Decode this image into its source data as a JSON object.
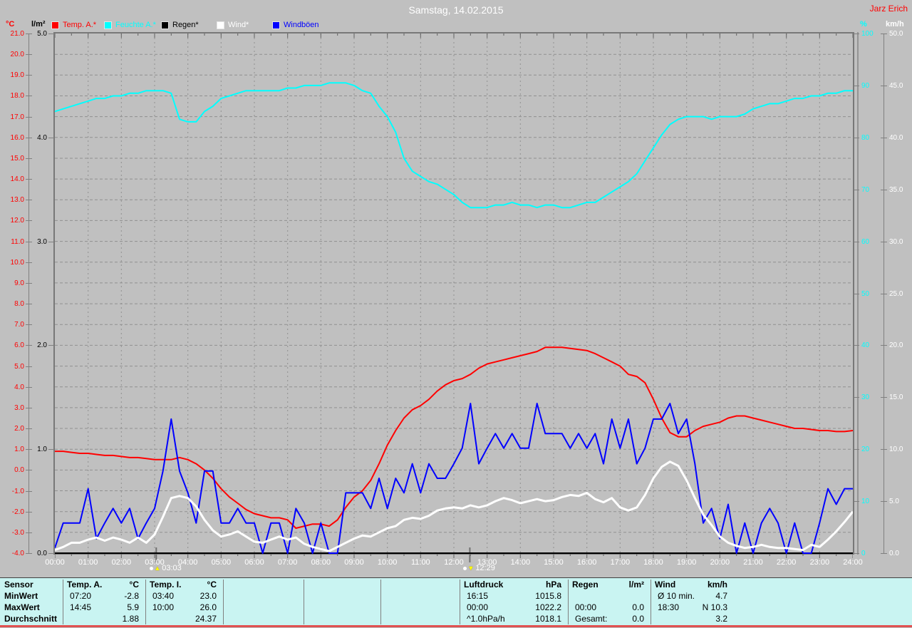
{
  "header": {
    "title": "Samstag, 14.02.2015",
    "user": "Jarz Erich"
  },
  "legend": {
    "items": [
      {
        "label": "Temp. A.*",
        "color": "#ff0000"
      },
      {
        "label": "Feuchte A.*",
        "color": "#00ffff"
      },
      {
        "label": "Regen*",
        "color": "#000000"
      },
      {
        "label": "Wind*",
        "color": "#ffffff"
      },
      {
        "label": "Windböen",
        "color": "#0000ff"
      }
    ]
  },
  "colors": {
    "background": "#c0c0c0",
    "title_text": "#ffffff",
    "user_text": "#ff0000",
    "grid": "#909090",
    "frame": "#787878",
    "tick": "#606060",
    "axis_line": "#808080",
    "x_label": "#ffffff",
    "marker_label": "#ffffff",
    "marker_icon": "#ffff00",
    "table_bg": "#c9f4f2",
    "table_separator": "#808080",
    "bottom_line": "#e05050"
  },
  "chart_data": {
    "type": "line",
    "title": "Samstag, 14.02.2015",
    "x_range_hours": [
      0,
      24
    ],
    "x_interval_minutes": 15,
    "x_ticks": [
      "00:00",
      "01:00",
      "02:00",
      "03:00",
      "04:00",
      "05:00",
      "06:00",
      "07:00",
      "08:00",
      "09:00",
      "10:00",
      "11:00",
      "12:00",
      "13:00",
      "14:00",
      "15:00",
      "16:00",
      "17:00",
      "18:00",
      "19:00",
      "20:00",
      "21:00",
      "22:00",
      "23:00",
      "24:00"
    ],
    "grid": true,
    "axes": {
      "temp": {
        "unit": "°C",
        "color": "#ff0000",
        "min": -4,
        "max": 21,
        "step": 1,
        "decimals": 1,
        "side": "left-outer"
      },
      "rain": {
        "unit": "l/m²",
        "color": "#000000",
        "min": 0,
        "max": 5,
        "step": 1,
        "decimals": 1,
        "side": "left-inner"
      },
      "humidity": {
        "unit": "%",
        "color": "#00ffff",
        "min": 0,
        "max": 100,
        "step": 10,
        "decimals": 0,
        "side": "right-inner"
      },
      "wind": {
        "unit": "km/h",
        "color": "#ffffff",
        "min": 0,
        "max": 50,
        "step": 5,
        "decimals": 1,
        "side": "right-outer"
      }
    },
    "series": [
      {
        "id": "rain",
        "name": "Regen*",
        "color": "#000000",
        "axis": "rain",
        "width": 2,
        "constant": 0.0
      },
      {
        "id": "humidity",
        "name": "Feuchte A.*",
        "color": "#00ffff",
        "axis": "humidity",
        "width": 2,
        "values": [
          85,
          85.5,
          86,
          86.5,
          87,
          87.5,
          87.5,
          88,
          88,
          88.5,
          88.5,
          89,
          89,
          89,
          88.5,
          83.5,
          83,
          83,
          85,
          86,
          87.5,
          88,
          88.5,
          89,
          89,
          89,
          89,
          89,
          89.5,
          89.5,
          90,
          90,
          90,
          90.5,
          90.5,
          90.5,
          90,
          89,
          88.5,
          86,
          84,
          81,
          76,
          73.5,
          72.5,
          71.5,
          71,
          70,
          69,
          67.5,
          66.5,
          66.5,
          66.5,
          67,
          67,
          67.5,
          67,
          67,
          66.5,
          67,
          67,
          66.5,
          66.5,
          67,
          67.5,
          67.5,
          68.5,
          69.5,
          70.5,
          71.5,
          73,
          75.5,
          78,
          80.5,
          82.5,
          83.5,
          84,
          84,
          84,
          83.5,
          84,
          84,
          84,
          84.5,
          85.5,
          86,
          86.5,
          86.5,
          87,
          87.5,
          87.5,
          88,
          88,
          88.5,
          88.5,
          89,
          89
        ]
      },
      {
        "id": "temp",
        "name": "Temp. A.*",
        "color": "#ff0000",
        "axis": "temp",
        "width": 2,
        "values": [
          0.9,
          0.9,
          0.85,
          0.8,
          0.8,
          0.75,
          0.7,
          0.7,
          0.65,
          0.6,
          0.6,
          0.55,
          0.5,
          0.5,
          0.5,
          0.6,
          0.5,
          0.3,
          0,
          -0.4,
          -0.9,
          -1.3,
          -1.6,
          -1.9,
          -2.1,
          -2.2,
          -2.3,
          -2.3,
          -2.4,
          -2.8,
          -2.7,
          -2.6,
          -2.6,
          -2.7,
          -2.4,
          -1.8,
          -1.3,
          -1,
          -0.5,
          0.3,
          1.2,
          1.9,
          2.5,
          2.9,
          3.1,
          3.4,
          3.8,
          4.1,
          4.3,
          4.4,
          4.6,
          4.9,
          5.1,
          5.2,
          5.3,
          5.4,
          5.5,
          5.6,
          5.7,
          5.9,
          5.9,
          5.9,
          5.85,
          5.8,
          5.75,
          5.6,
          5.4,
          5.2,
          5,
          4.6,
          4.5,
          4.2,
          3.4,
          2.5,
          1.8,
          1.6,
          1.6,
          1.9,
          2.1,
          2.2,
          2.3,
          2.5,
          2.6,
          2.6,
          2.5,
          2.4,
          2.3,
          2.2,
          2.1,
          2,
          2,
          1.95,
          1.9,
          1.9,
          1.85,
          1.85,
          1.9
        ]
      },
      {
        "id": "gusts",
        "name": "Windböen",
        "color": "#0000ff",
        "axis": "wind",
        "width": 2,
        "values": [
          0.5,
          2.9,
          2.9,
          2.9,
          6.2,
          1.4,
          2.9,
          4.3,
          2.9,
          4.3,
          1.4,
          2.9,
          4.3,
          7.9,
          12.9,
          7.9,
          5.8,
          2.9,
          7.9,
          7.9,
          2.9,
          2.9,
          4.3,
          2.9,
          2.9,
          0,
          2.9,
          2.9,
          0,
          4.3,
          2.9,
          0,
          2.9,
          0,
          0,
          5.8,
          5.8,
          5.8,
          4.3,
          7.2,
          4.3,
          7.2,
          5.8,
          8.6,
          5.8,
          8.6,
          7.2,
          7.2,
          8.6,
          10.1,
          14.4,
          8.6,
          10.1,
          11.5,
          10.1,
          11.5,
          10.1,
          10.1,
          14.4,
          11.5,
          11.5,
          11.5,
          10.1,
          11.5,
          10.1,
          11.5,
          8.6,
          12.9,
          10.1,
          12.9,
          8.6,
          10.1,
          12.9,
          12.9,
          14.4,
          11.5,
          12.9,
          8.6,
          2.9,
          4.3,
          1.4,
          4.7,
          0,
          2.9,
          0,
          2.9,
          4.3,
          2.9,
          0,
          2.9,
          0,
          0,
          2.9,
          6.2,
          4.7,
          6.2,
          6.2
        ]
      },
      {
        "id": "wind",
        "name": "Wind*",
        "color": "#ffffff",
        "axis": "wind",
        "width": 3,
        "values": [
          0.3,
          0.6,
          1,
          1,
          1.3,
          1.5,
          1.2,
          1.5,
          1.3,
          1,
          1.5,
          1,
          1.8,
          3.5,
          5.3,
          5.5,
          5.3,
          4.5,
          3.2,
          2.2,
          1.6,
          1.8,
          2.1,
          1.6,
          1.1,
          1,
          1.3,
          1.6,
          1.3,
          1.5,
          0.9,
          0.6,
          0.4,
          0.2,
          0.6,
          1,
          1.4,
          1.7,
          1.6,
          2,
          2.4,
          2.6,
          3.2,
          3.4,
          3.3,
          3.6,
          4.1,
          4.3,
          4.4,
          4.3,
          4.6,
          4.4,
          4.6,
          5,
          5.3,
          5.1,
          4.8,
          5,
          5.2,
          5,
          5.1,
          5.4,
          5.6,
          5.5,
          5.8,
          5.2,
          4.9,
          5.3,
          4.4,
          4.1,
          4.4,
          5.6,
          7.2,
          8.3,
          8.8,
          8.4,
          7,
          5.3,
          3.7,
          2.7,
          1.6,
          1,
          0.7,
          0.5,
          0.6,
          0.8,
          0.6,
          0.5,
          0.5,
          0.4,
          0.3,
          0.8,
          0.6,
          1.3,
          2.1,
          3,
          4
        ]
      }
    ],
    "markers": [
      {
        "label": "03:03",
        "hour": 3.05,
        "icon": "moonrise-icon",
        "direction": "up"
      },
      {
        "label": "12:29",
        "hour": 12.48,
        "icon": "moonset-icon",
        "direction": "down"
      }
    ]
  },
  "table": {
    "row_labels": [
      "Sensor",
      "MinWert",
      "MaxWert",
      "Durchschnitt"
    ],
    "columns": [
      {
        "name": "Temp. A.",
        "unit": "°C",
        "rows": [
          [
            "07:20",
            "-2.8"
          ],
          [
            "14:45",
            "5.9"
          ],
          [
            "",
            "1.88"
          ]
        ]
      },
      {
        "name": "Temp. I.",
        "unit": "°C",
        "rows": [
          [
            "03:40",
            "23.0"
          ],
          [
            "10:00",
            "26.0"
          ],
          [
            "",
            "24.37"
          ]
        ]
      },
      {
        "name": "",
        "unit": "",
        "rows": [
          [
            "",
            ""
          ],
          [
            "",
            ""
          ],
          [
            "",
            ""
          ]
        ]
      },
      {
        "name": "",
        "unit": "",
        "rows": [
          [
            "",
            ""
          ],
          [
            "",
            ""
          ],
          [
            "",
            ""
          ]
        ]
      },
      {
        "name": "",
        "unit": "",
        "rows": [
          [
            "",
            ""
          ],
          [
            "",
            ""
          ],
          [
            "",
            ""
          ]
        ]
      },
      {
        "name": "Luftdruck",
        "unit": "hPa",
        "rows": [
          [
            "16:15",
            "1015.8"
          ],
          [
            "00:00",
            "1022.2"
          ],
          [
            "^1.0hPa/h",
            "1018.1"
          ]
        ]
      },
      {
        "name": "Regen",
        "unit": "l/m²",
        "rows": [
          [
            "",
            ""
          ],
          [
            "00:00",
            "0.0"
          ],
          [
            "Gesamt:",
            "0.0"
          ]
        ]
      },
      {
        "name": "Wind",
        "unit": "km/h",
        "rows": [
          [
            "Ø 10 min.",
            "4.7"
          ],
          [
            "18:30",
            "N 10.3"
          ],
          [
            "",
            "3.2"
          ]
        ]
      }
    ]
  }
}
